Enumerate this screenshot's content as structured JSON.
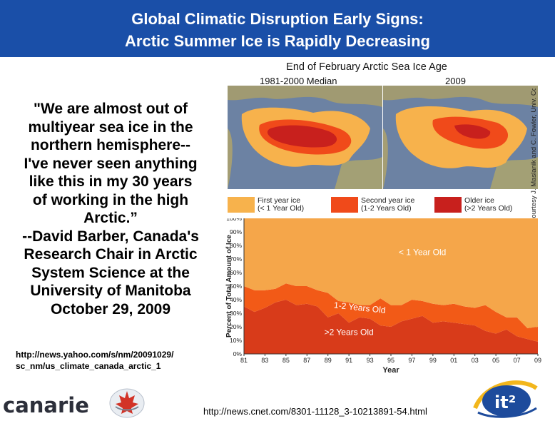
{
  "slide": {
    "title_lines": [
      "Global Climatic Disruption Early Signs:",
      "Arctic Summer Ice is Rapidly Decreasing"
    ],
    "quote_lines": [
      "\"We are almost out of",
      "multiyear sea ice in the",
      "northern hemisphere--",
      "I've never seen anything",
      "like this in my 30 years",
      "of working in the high",
      "Arctic.”",
      "--David Barber, Canada's",
      "Research Chair in Arctic",
      "System Science at the",
      "University of Manitoba",
      "October 29, 2009"
    ],
    "source_link_lines": [
      "http://news.yahoo.com/s/nm/20091029/",
      "sc_nm/us_climate_canada_arctic_1"
    ],
    "footer_url": "http://news.cnet.com/8301-11128_3-10213891-54.html",
    "logos": {
      "canarie_text": "canarie",
      "it2_text": "it²"
    }
  },
  "figure": {
    "title": "End of February Arctic Sea Ice Age",
    "map_left_label": "1981-2000 Median",
    "map_right_label": "2009",
    "credit": "National Snow and Ice Data Center, courtesy J. Maslanik and C. Fowler, Univ. Colorado",
    "legend": [
      {
        "line1": "First year ice",
        "line2": "(< 1 Year Old)",
        "color": "#f7b24c"
      },
      {
        "line1": "Second year ice",
        "line2": "(1-2 Years Old)",
        "color": "#f04a1a"
      },
      {
        "line1": "Older ice",
        "line2": "(>2 Years Old)",
        "color": "#c8201d"
      }
    ]
  },
  "chart_data": {
    "type": "area",
    "stacked": true,
    "title": "",
    "xlabel": "Year",
    "ylabel": "Percent of Total Amount of Ice",
    "x_tick_labels": [
      "81",
      "83",
      "85",
      "87",
      "89",
      "91",
      "93",
      "95",
      "97",
      "99",
      "01",
      "03",
      "05",
      "07",
      "09"
    ],
    "y_tick_labels": [
      "0%",
      "10%",
      "20%",
      "30%",
      "40%",
      "50%",
      "60%",
      "70%",
      "80%",
      "90%",
      "100%"
    ],
    "ylim": [
      0,
      100
    ],
    "x": [
      1981,
      1982,
      1983,
      1984,
      1985,
      1986,
      1987,
      1988,
      1989,
      1990,
      1991,
      1992,
      1993,
      1994,
      1995,
      1996,
      1997,
      1998,
      1999,
      2000,
      2001,
      2002,
      2003,
      2004,
      2005,
      2006,
      2007,
      2008,
      2009
    ],
    "series": [
      {
        "name": ">2 Years Old",
        "color": "#d83b1a",
        "values": [
          35,
          31,
          34,
          38,
          40,
          36,
          37,
          35,
          27,
          30,
          23,
          27,
          26,
          21,
          20,
          24,
          26,
          28,
          23,
          24,
          23,
          22,
          21,
          17,
          15,
          18,
          13,
          11,
          9
        ]
      },
      {
        "name": "1-2 Years Old",
        "color": "#f25a17",
        "values": [
          15,
          16,
          13,
          10,
          12,
          14,
          13,
          12,
          18,
          9,
          15,
          9,
          10,
          20,
          16,
          12,
          14,
          11,
          14,
          12,
          14,
          13,
          13,
          19,
          16,
          9,
          14,
          8,
          11
        ]
      },
      {
        "name": "< 1 Year Old",
        "color": "#f5a64a",
        "values": [
          50,
          53,
          53,
          52,
          48,
          50,
          50,
          53,
          55,
          61,
          62,
          64,
          64,
          59,
          64,
          64,
          60,
          61,
          63,
          64,
          63,
          65,
          66,
          64,
          69,
          73,
          73,
          81,
          80
        ]
      }
    ],
    "annotations": [
      {
        "text": "< 1 Year Old",
        "x": 1998,
        "y": 73
      },
      {
        "text": "1-2 Years Old",
        "x": 1992,
        "y": 32
      },
      {
        "text": ">2 Years Old",
        "x": 1991,
        "y": 14
      }
    ]
  }
}
